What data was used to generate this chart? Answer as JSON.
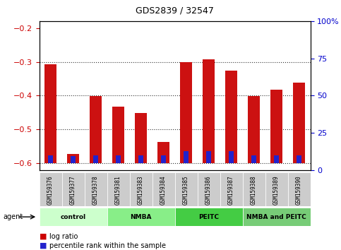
{
  "title": "GDS2839 / 32547",
  "samples": [
    "GSM159376",
    "GSM159377",
    "GSM159378",
    "GSM159381",
    "GSM159383",
    "GSM159384",
    "GSM159385",
    "GSM159386",
    "GSM159387",
    "GSM159388",
    "GSM159389",
    "GSM159390"
  ],
  "log_ratio": [
    -0.307,
    -0.572,
    -0.402,
    -0.432,
    -0.452,
    -0.538,
    -0.302,
    -0.293,
    -0.327,
    -0.402,
    -0.383,
    -0.362
  ],
  "percentile_rank": [
    5.5,
    5.0,
    5.5,
    5.5,
    5.5,
    5.5,
    8.0,
    8.0,
    8.0,
    5.5,
    5.5,
    5.5
  ],
  "ylim_left": [
    -0.62,
    -0.18
  ],
  "ylim_right": [
    0,
    100
  ],
  "left_ticks": [
    -0.6,
    -0.5,
    -0.4,
    -0.3,
    -0.2
  ],
  "right_ticks": [
    0,
    25,
    50,
    75,
    100
  ],
  "bar_bottom": -0.6,
  "groups": [
    {
      "label": "control",
      "start": 0,
      "end": 3
    },
    {
      "label": "NMBA",
      "start": 3,
      "end": 6
    },
    {
      "label": "PEITC",
      "start": 6,
      "end": 9
    },
    {
      "label": "NMBA and PEITC",
      "start": 9,
      "end": 12
    }
  ],
  "group_colors": [
    "#ccffcc",
    "#88ee88",
    "#44cc44",
    "#77cc77"
  ],
  "agent_label": "agent",
  "legend_log_ratio_color": "#cc0000",
  "legend_pct_color": "#2222cc",
  "bar_color_red": "#cc1111",
  "bar_color_blue": "#2222cc",
  "axis_bg": "#ffffff",
  "left_label_color": "#cc0000",
  "right_label_color": "#0000cc",
  "dotted_line_color": "#333333"
}
